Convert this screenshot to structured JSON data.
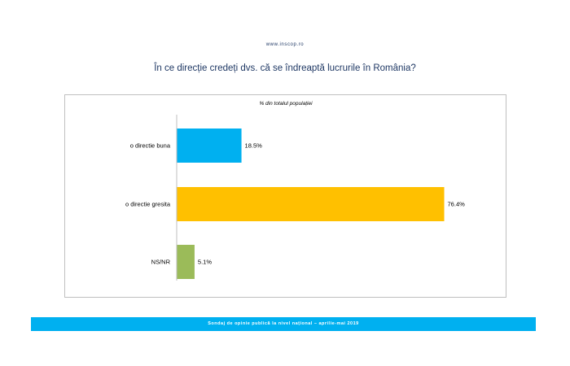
{
  "header": {
    "site_url": "www.inscop.ro",
    "question": "În ce direcție credeți dvs. că se îndreaptă lucrurile în România?"
  },
  "chart_data": {
    "type": "bar",
    "orientation": "horizontal",
    "subtitle": "% din totalul populației",
    "categories": [
      "o directie buna",
      "o directie gresita",
      "NS/NR"
    ],
    "values": [
      18.5,
      76.4,
      5.1
    ],
    "value_labels": [
      "18.5%",
      "76.4%",
      "5.1%"
    ],
    "colors": [
      "#00b0f0",
      "#ffc000",
      "#9bbb59"
    ],
    "xlim": [
      0,
      100
    ],
    "grid": false,
    "legend": "none"
  },
  "footer": {
    "text": "Sondaj de opinie publică la nivel național – aprilie-mai 2019"
  }
}
